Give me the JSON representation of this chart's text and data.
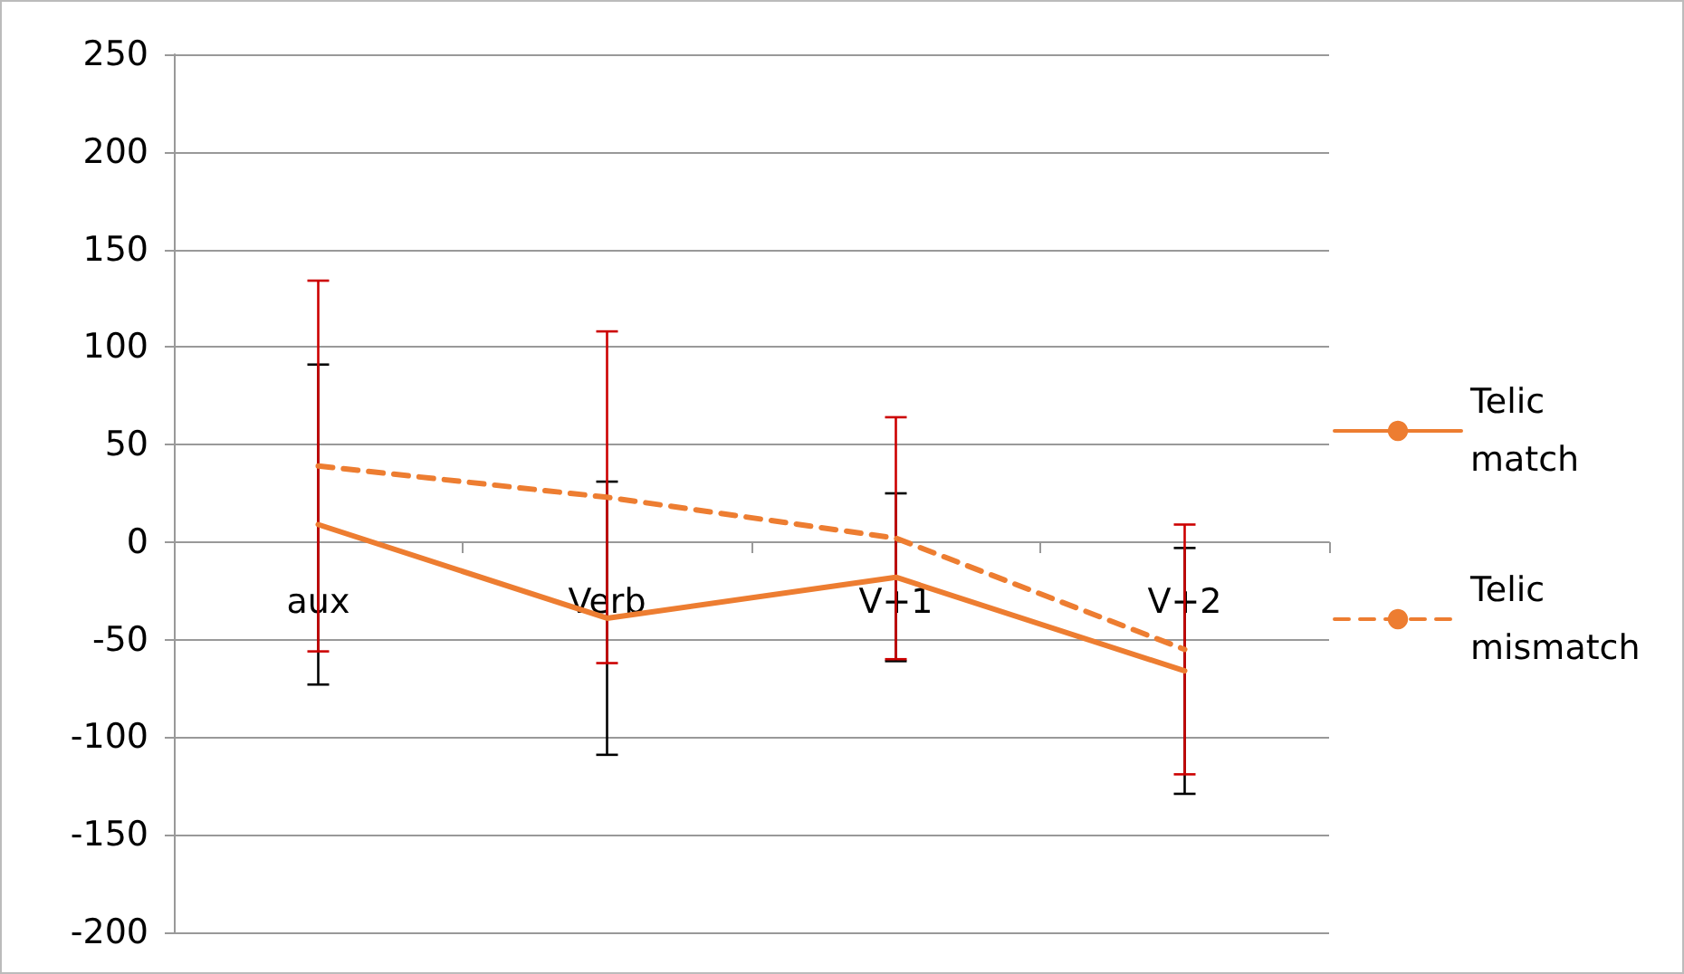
{
  "chart_data": {
    "type": "line",
    "categories": [
      "aux",
      "Verb",
      "V+1",
      "V+2"
    ],
    "series": [
      {
        "name": "Telic match",
        "color": "#ed7d31",
        "line_style": "solid",
        "values": [
          9,
          -39,
          -18,
          -66
        ],
        "errors": [
          82,
          70,
          43,
          63
        ]
      },
      {
        "name": "Telic mismatch",
        "color": "#ed7d31",
        "line_style": "dashed",
        "values": [
          39,
          23,
          2,
          -55
        ],
        "errors": [
          95,
          85,
          62,
          64
        ]
      }
    ],
    "ylim": [
      -200,
      250
    ],
    "yticks": [
      -200,
      -150,
      -100,
      -50,
      0,
      50,
      100,
      150,
      200,
      250
    ],
    "grid": "y",
    "legend": "right",
    "marker": "none"
  }
}
